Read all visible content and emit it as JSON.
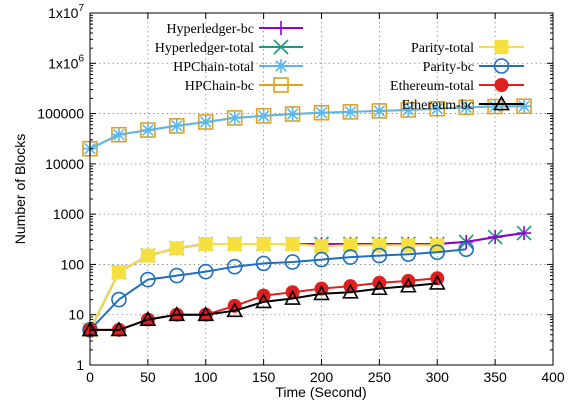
{
  "chart_data": {
    "type": "line",
    "ylabel": "Number of Blocks",
    "xlabel": "Time (Second)",
    "x_scale": "linear",
    "y_scale": "log",
    "xlim": [
      0,
      400
    ],
    "ylim": [
      1,
      10000000
    ],
    "grid": true,
    "legend_placement": "top, two columns",
    "x_ticks": [
      0,
      50,
      100,
      150,
      200,
      250,
      300,
      350,
      400
    ],
    "x_tick_labels": [
      "0",
      "50",
      "100",
      "150",
      "200",
      "250",
      "300",
      "350",
      "400"
    ],
    "y_ticks": [
      1,
      10,
      100,
      1000,
      10000,
      100000,
      1000000,
      10000000
    ],
    "y_tick_labels": [
      {
        "text": "1"
      },
      {
        "text": "10"
      },
      {
        "text": "100"
      },
      {
        "text": "1000"
      },
      {
        "text": "10000"
      },
      {
        "text": "100000"
      },
      {
        "text": "1x10",
        "exp": "6"
      },
      {
        "text": "1x10",
        "exp": "7"
      }
    ],
    "series": [
      {
        "name": "HPChain-bc",
        "color": "#e0a020",
        "marker": "open-square",
        "legend_column": "left",
        "x": [
          0,
          25,
          50,
          75,
          100,
          125,
          150,
          175,
          200,
          225,
          250,
          275,
          300,
          325,
          350,
          375
        ],
        "y": [
          20000,
          38000,
          47000,
          57000,
          68000,
          82000,
          90000,
          98000,
          104000,
          108000,
          113000,
          118000,
          125000,
          133000,
          138000,
          140000
        ]
      },
      {
        "name": "HPChain-total",
        "color": "#5bb8e8",
        "marker": "star",
        "legend_column": "left",
        "x": [
          0,
          25,
          50,
          75,
          100,
          125,
          150,
          175,
          200,
          225,
          250,
          275,
          300,
          325,
          350,
          375
        ],
        "y": [
          20000,
          38000,
          47000,
          57000,
          68000,
          82000,
          90000,
          98000,
          104000,
          108000,
          113000,
          118000,
          125000,
          133000,
          138000,
          140000
        ]
      },
      {
        "name": "Hyperledger-total",
        "color": "#1a9a7a",
        "marker": "x",
        "legend_column": "left",
        "x": [
          0,
          25,
          50,
          75,
          100,
          125,
          150,
          175,
          200,
          225,
          250,
          275,
          300,
          325,
          350,
          375
        ],
        "y": [
          5,
          70,
          150,
          210,
          255,
          255,
          255,
          255,
          255,
          255,
          255,
          255,
          255,
          280,
          350,
          420
        ]
      },
      {
        "name": "Hyperledger-bc",
        "color": "#9400d3",
        "marker": "plus",
        "legend_column": "left",
        "x": [
          0,
          25,
          50,
          75,
          100,
          125,
          150,
          175,
          200,
          225,
          250,
          275,
          300,
          325,
          350,
          375
        ],
        "y": [
          5,
          70,
          150,
          210,
          255,
          255,
          255,
          255,
          255,
          255,
          255,
          255,
          255,
          280,
          350,
          420
        ]
      },
      {
        "name": "Parity-total",
        "color": "#f5e040",
        "marker": "filled-square",
        "legend_column": "right",
        "x": [
          0,
          25,
          50,
          75,
          100,
          125,
          150,
          175,
          200,
          225,
          250,
          275,
          300
        ],
        "y": [
          5,
          70,
          150,
          210,
          255,
          255,
          255,
          255,
          230,
          240,
          240,
          240,
          240
        ]
      },
      {
        "name": "Parity-bc",
        "color": "#1e6fc0",
        "marker": "open-circle",
        "legend_column": "right",
        "x": [
          0,
          25,
          50,
          75,
          100,
          125,
          150,
          175,
          200,
          225,
          250,
          275,
          300,
          325
        ],
        "y": [
          5,
          20,
          50,
          60,
          72,
          90,
          105,
          112,
          125,
          140,
          150,
          160,
          175,
          200
        ]
      },
      {
        "name": "Ethereum-total",
        "color": "#e02020",
        "marker": "filled-circle",
        "legend_column": "right",
        "x": [
          0,
          25,
          50,
          75,
          100,
          125,
          150,
          175,
          200,
          225,
          250,
          275,
          300
        ],
        "y": [
          5,
          5,
          8,
          10,
          10,
          15,
          24,
          28,
          33,
          37,
          43,
          47,
          53
        ]
      },
      {
        "name": "Ethereum-bc",
        "color": "#000000",
        "marker": "open-triangle",
        "legend_column": "right",
        "x": [
          0,
          25,
          50,
          75,
          100,
          125,
          150,
          175,
          200,
          225,
          250,
          275,
          300
        ],
        "y": [
          5,
          5,
          8,
          10,
          10,
          12,
          18,
          21,
          26,
          28,
          33,
          37,
          42
        ]
      }
    ]
  }
}
